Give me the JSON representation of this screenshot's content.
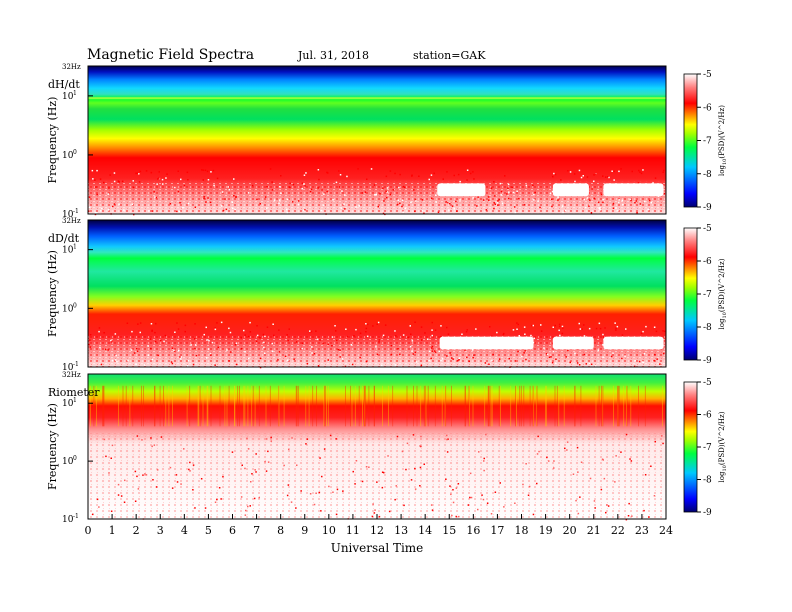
{
  "header": {
    "title": "Magnetic Field Spectra",
    "date": "Jul. 31, 2018",
    "station": "station=GAK"
  },
  "chart_data": {
    "type": "heatmap",
    "x_axis": {
      "label": "Universal Time",
      "range": [
        0,
        24
      ],
      "ticks": [
        "0",
        "1",
        "2",
        "3",
        "4",
        "5",
        "6",
        "7",
        "8",
        "9",
        "10",
        "11",
        "12",
        "13",
        "14",
        "15",
        "16",
        "17",
        "18",
        "19",
        "20",
        "21",
        "22",
        "23",
        "24"
      ]
    },
    "y_axis": {
      "label": "Frequency (Hz)",
      "scale": "log",
      "range": [
        0.1,
        32
      ],
      "tick_labels": [
        "10",
        "10",
        "10"
      ],
      "tick_exponents": [
        "1",
        "0",
        "-1"
      ],
      "tick_values": [
        10,
        1,
        0.1
      ],
      "top_label": "32Hz"
    },
    "colorbar": {
      "label": "log10(PSD)(V^2/Hz)",
      "label_base": "log",
      "label_sub": "10",
      "label_rest": "(PSD)(V^2/Hz)",
      "range": [
        -9,
        -5
      ],
      "ticks": [
        "-5",
        "-6",
        "-7",
        "-8",
        "-9"
      ],
      "tick_values": [
        -5,
        -6,
        -7,
        -8,
        -9
      ],
      "colormap": [
        "#000070",
        "#0000ff",
        "#00c8ff",
        "#00ff40",
        "#a0ff00",
        "#ffff00",
        "#ff8000",
        "#ff0000",
        "#ffffff"
      ]
    },
    "panels": [
      {
        "name": "dH/dt",
        "description_levels": {
          "below_0p3Hz": "mostly white (> -5) with red speckle",
          "0p3_to_3Hz": "red (-6)",
          "3_to_8Hz": "green (-7)",
          "9Hz_band": "bright green line",
          "10_to_32Hz": "cyan to dark blue (-8 to -9)"
        },
        "white_patches_UT": [
          [
            14.5,
            16.5
          ],
          [
            19.3,
            20.8
          ],
          [
            21.4,
            23.9
          ]
        ]
      },
      {
        "name": "dD/dt",
        "description_levels": {
          "below_0p3Hz": "mostly white with red speckle",
          "0p3_to_1Hz": "red (-6)",
          "1_to_8Hz": "green to cyan (-7 to -8)",
          "10_to_32Hz": "cyan to dark blue (-8 to -9)"
        },
        "white_patches_UT": [
          [
            14.6,
            18.5
          ],
          [
            19.3,
            21.0
          ],
          [
            21.4,
            23.9
          ]
        ]
      },
      {
        "name": "Riometer",
        "description_levels": {
          "below_3Hz": "white (> -5) with sparse red dots",
          "3_to_12Hz": "red (-6)",
          "12_to_20Hz": "yellow-green (-7)",
          "20_to_32Hz": "green (-7)"
        },
        "white_patches_UT": []
      }
    ]
  }
}
